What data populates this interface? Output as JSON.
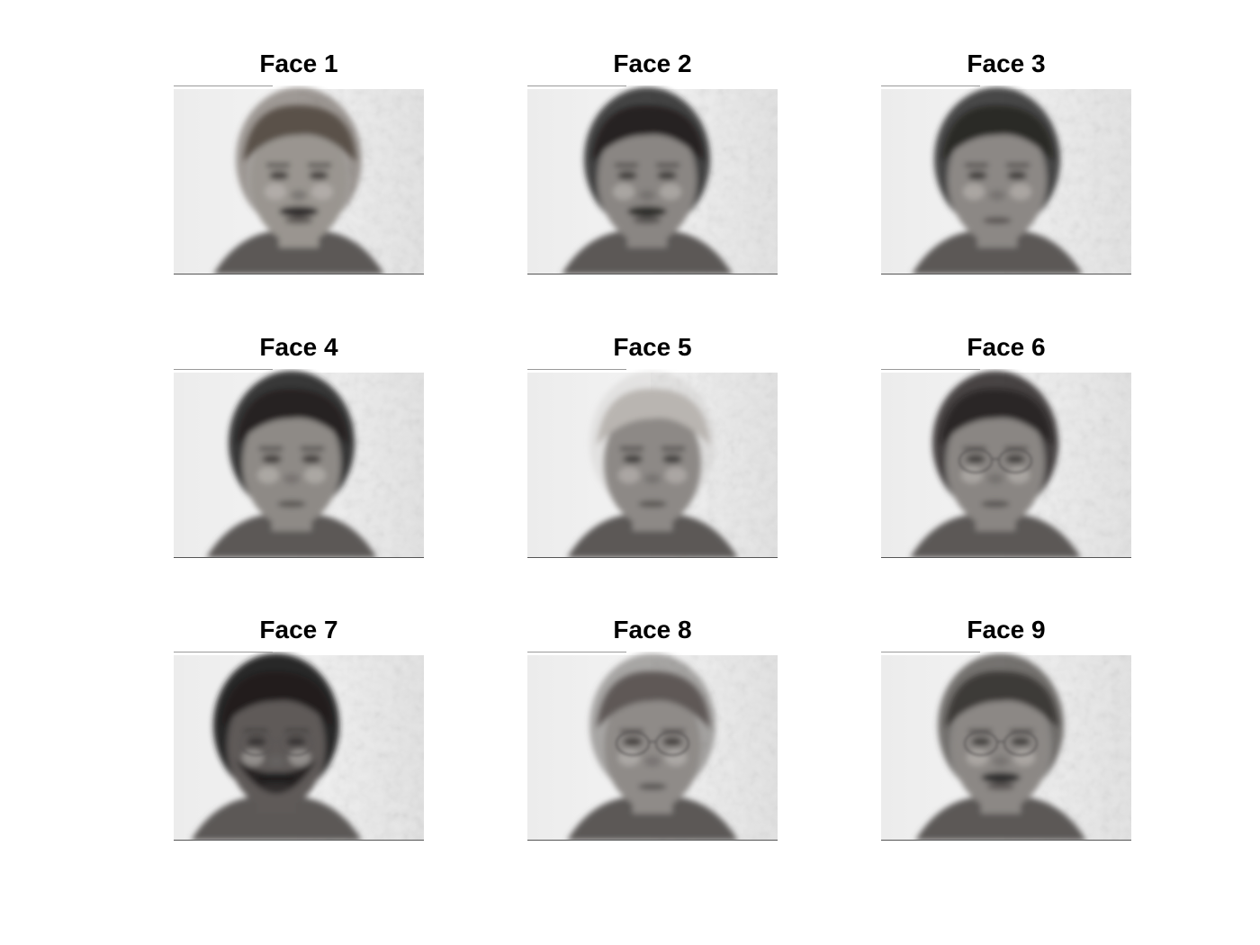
{
  "figure": {
    "panels": [
      {
        "title": "Face 1",
        "hair": "#5a5148",
        "skin": "#9a9590",
        "beard": false,
        "mustache": true,
        "glasses": false,
        "shift": 0,
        "hairTone": 0.55
      },
      {
        "title": "Face 2",
        "hair": "#262323",
        "skin": "#8a8683",
        "beard": false,
        "mustache": true,
        "glasses": false,
        "shift": -6,
        "hairTone": 0.85
      },
      {
        "title": "Face 3",
        "hair": "#2c2928",
        "skin": "#8c8885",
        "beard": false,
        "mustache": false,
        "glasses": false,
        "shift": -10,
        "hairTone": 0.85
      },
      {
        "title": "Face 4",
        "hair": "#252222",
        "skin": "#8e8a86",
        "beard": false,
        "mustache": false,
        "glasses": false,
        "shift": -8,
        "hairTone": 0.9
      },
      {
        "title": "Face 5",
        "hair": "#b9b5b1",
        "skin": "#8d8986",
        "beard": false,
        "mustache": false,
        "glasses": false,
        "shift": 0,
        "hairTone": 0.25
      },
      {
        "title": "Face 6",
        "hair": "#2a2626",
        "skin": "#8a8683",
        "beard": false,
        "mustache": false,
        "glasses": true,
        "shift": -12,
        "hairTone": 0.85
      },
      {
        "title": "Face 7",
        "hair": "#201d1d",
        "skin": "#5e5a58",
        "beard": true,
        "mustache": true,
        "glasses": true,
        "shift": -25,
        "hairTone": 0.95
      },
      {
        "title": "Face 8",
        "hair": "#5e5956",
        "skin": "#8f8b88",
        "beard": false,
        "mustache": false,
        "glasses": true,
        "shift": 0,
        "hairTone": 0.5
      },
      {
        "title": "Face 9",
        "hair": "#3e3a39",
        "skin": "#8c8885",
        "beard": false,
        "mustache": true,
        "glasses": true,
        "shift": -6,
        "hairTone": 0.7
      }
    ]
  }
}
